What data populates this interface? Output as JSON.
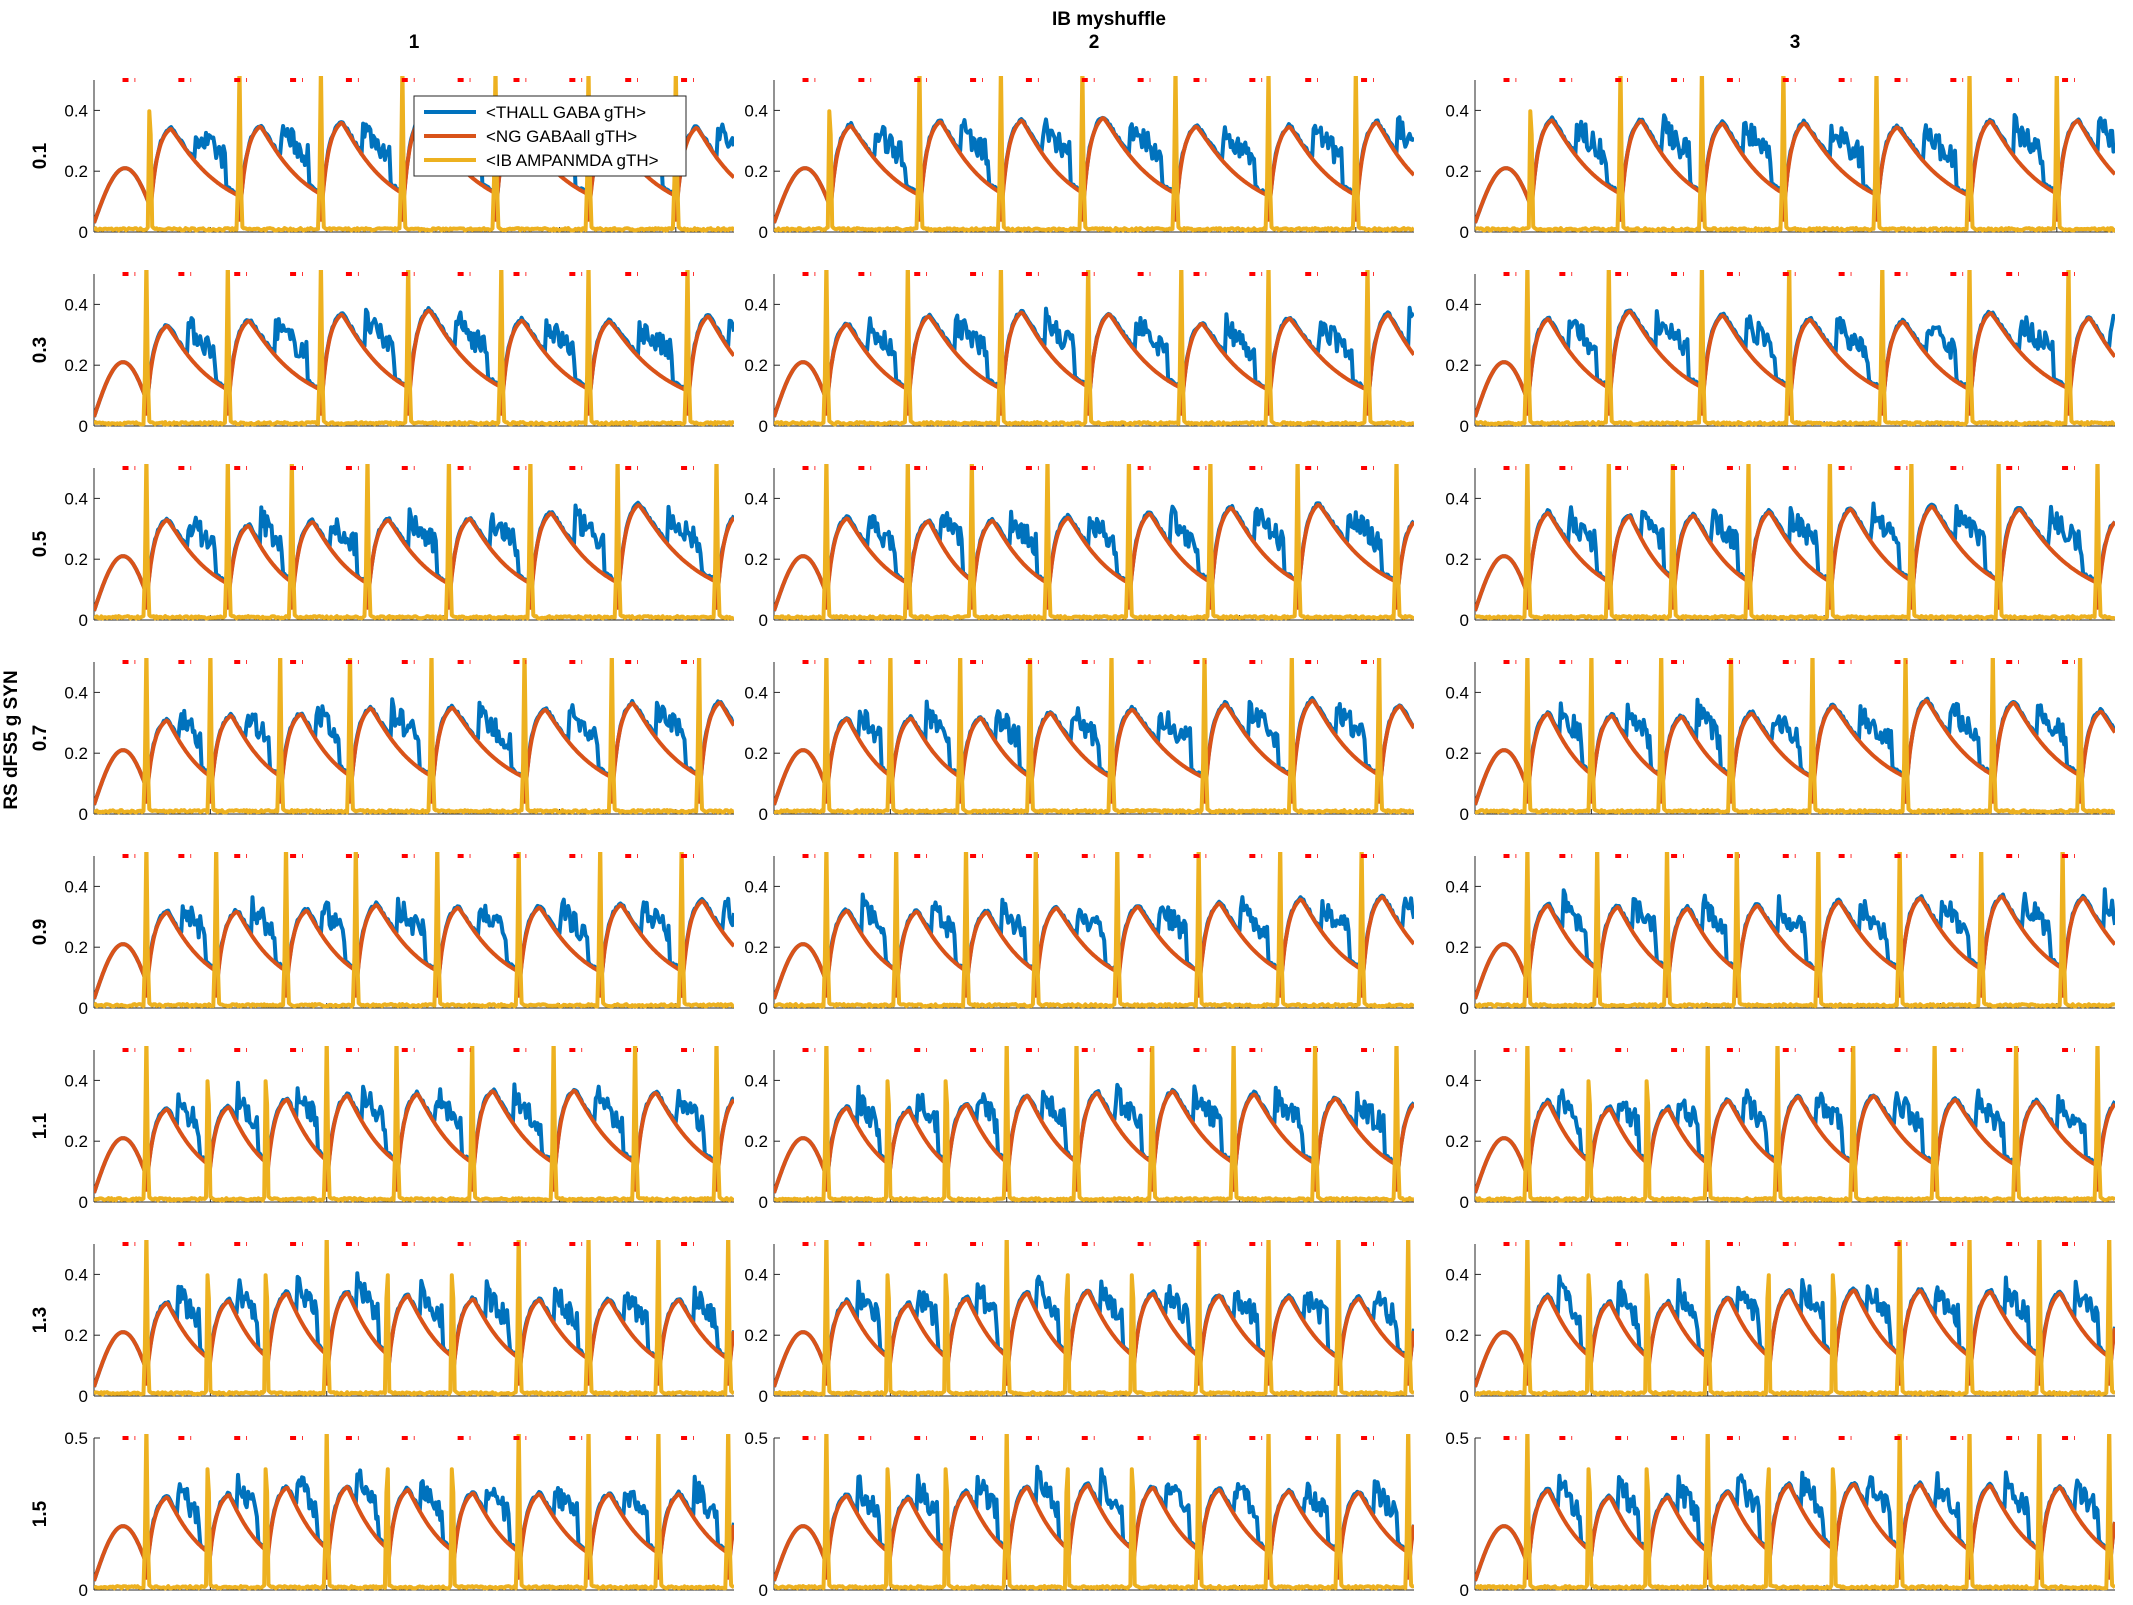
{
  "chart_data": {
    "type": "line",
    "title": "IB myshuffle",
    "ylabel": "RS dFS5 g SYN",
    "column_titles": [
      "1",
      "2",
      "3"
    ],
    "row_labels": [
      "0.1",
      "0.3",
      "0.5",
      "0.7",
      "0.9",
      "1.1",
      "1.3",
      "1.5"
    ],
    "xlim": [
      0,
      5500
    ],
    "x_ticks": [
      "0",
      "1000",
      "2000",
      "3000",
      "4000",
      "5000"
    ],
    "ylim": [
      0,
      0.5
    ],
    "y_ticks": [
      "0",
      "0.2",
      "0.4"
    ],
    "y_ticks_last_row": [
      "0",
      "0.5"
    ],
    "grid": false,
    "legend_placement": "inside top, first panel",
    "series": [
      {
        "name": "<THALL GABA gTH>",
        "color": "#0072BD",
        "typical_peak": 0.42
      },
      {
        "name": "<NG GABAall gTH>",
        "color": "#D95319",
        "typical_peak": 0.3
      },
      {
        "name": "<IB AMPANMDA gTH>",
        "color": "#EDB120",
        "typical_peak": 0.5
      }
    ],
    "stimulus_marker": {
      "color": "#FF0000",
      "y": 0.5,
      "times": [
        300,
        780,
        1260,
        1740,
        2220,
        2700,
        3180,
        3660,
        4140,
        4620,
        5100
      ]
    },
    "burst_times_by_row": [
      [
        480,
        1250,
        1950,
        2650,
        3450,
        4250,
        5000
      ],
      [
        450,
        1150,
        1950,
        2700,
        3500,
        4250,
        5100
      ],
      [
        450,
        1150,
        1700,
        2350,
        3050,
        3750,
        4500,
        5350
      ],
      [
        450,
        1000,
        1600,
        2200,
        2900,
        3700,
        4450,
        5200
      ],
      [
        450,
        1050,
        1650,
        2250,
        2950,
        3650,
        4350,
        5050
      ],
      [
        450,
        980,
        1480,
        2000,
        2600,
        3250,
        3950,
        4650,
        5350
      ],
      [
        450,
        980,
        1480,
        2000,
        2520,
        3080,
        3650,
        4250,
        4850,
        5450
      ],
      [
        450,
        980,
        1480,
        2000,
        2520,
        3080,
        3650,
        4250,
        4850,
        5450
      ]
    ]
  }
}
